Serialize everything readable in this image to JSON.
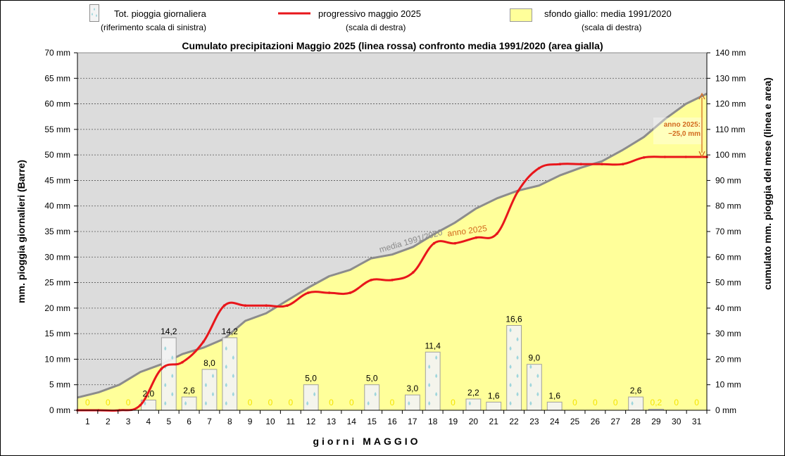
{
  "legend": {
    "bars_label": "Tot. pioggia giornaliera",
    "bars_sub": "(riferimento scala di sinistra)",
    "line_label": "progressivo maggio 2025",
    "line_sub": "(scala di destra)",
    "area_label": "sfondo giallo: media 1991/2020",
    "area_sub": "(scala di destra)"
  },
  "colors": {
    "line_2025": "#e8161b",
    "area_fill": "#ffff9a",
    "plot_bg": "#dcdcdc",
    "media_line": "#8c8c8c",
    "bar_fill": "#f4f4f4",
    "drop": "#9fd6dc",
    "zero_label": "#f4e400",
    "annotation": "#d2691e"
  },
  "chart_data": {
    "type": "bar",
    "title": "Cumulato precipitazioni  Maggio 2025 (linea rossa) confronto media 1991/2020 (area gialla)",
    "xlabel": "giorni  MAGGIO",
    "ylabel_left": "mm. pioggia giornalieri (Barre)",
    "ylabel_right": "cumulato mm. pioggia del mese (linea e area)",
    "ylim_left": [
      0,
      70
    ],
    "ylim_right": [
      0,
      140
    ],
    "left_ticks": [
      "0 mm",
      "5 mm",
      "10 mm",
      "15 mm",
      "20 mm",
      "25 mm",
      "30 mm",
      "35 mm",
      "40 mm",
      "45 mm",
      "50 mm",
      "55 mm",
      "60 mm",
      "65 mm",
      "70 mm"
    ],
    "right_ticks": [
      "0 mm",
      "10 mm",
      "20 mm",
      "30 mm",
      "40 mm",
      "50 mm",
      "60 mm",
      "70 mm",
      "80 mm",
      "90 mm",
      "100 mm",
      "110 mm",
      "120 mm",
      "130 mm",
      "140 mm"
    ],
    "categories": [
      "1",
      "2",
      "3",
      "4",
      "5",
      "6",
      "7",
      "8",
      "9",
      "10",
      "11",
      "12",
      "13",
      "14",
      "15",
      "16",
      "17",
      "18",
      "19",
      "20",
      "21",
      "22",
      "23",
      "24",
      "25",
      "26",
      "27",
      "28",
      "29",
      "30",
      "31"
    ],
    "daily_rain": [
      0,
      0,
      0,
      2.0,
      14.2,
      2.6,
      8.0,
      14.2,
      0,
      0,
      0,
      5.0,
      0,
      0,
      5.0,
      0,
      3.0,
      11.4,
      0,
      2.2,
      1.6,
      16.6,
      9.0,
      1.6,
      0,
      0,
      0,
      2.6,
      0.2,
      0,
      0
    ],
    "daily_labels": [
      "0",
      "0",
      "0",
      "2,0",
      "14,2",
      "2,6",
      "8,0",
      "14,2",
      "0",
      "0",
      "0",
      "5,0",
      "0",
      "0",
      "5,0",
      "0",
      "3,0",
      "11,4",
      "0",
      "2,2",
      "1,6",
      "16,6",
      "9,0",
      "1,6",
      "0",
      "0",
      "0",
      "2,6",
      "0,2",
      "0",
      "0"
    ],
    "series": [
      {
        "name": "progressivo maggio 2025",
        "axis": "right",
        "values": [
          0,
          0,
          0,
          2.0,
          16.2,
          18.8,
          26.8,
          41.0,
          41.0,
          41.0,
          41.0,
          46.0,
          46.0,
          46.0,
          51.0,
          51.0,
          54.0,
          65.4,
          65.4,
          67.6,
          69.2,
          85.8,
          94.8,
          96.4,
          96.4,
          96.4,
          96.4,
          99.0,
          99.2,
          99.2,
          99.2
        ]
      },
      {
        "name": "media 1991/2020",
        "axis": "right",
        "values": [
          5,
          7,
          10,
          15,
          18,
          22,
          24.5,
          28,
          35,
          38,
          43,
          48,
          52.5,
          55,
          59.5,
          61,
          64,
          69,
          73.5,
          79,
          83,
          86,
          88,
          92,
          95,
          97.5,
          102,
          107,
          114,
          120,
          124
        ]
      }
    ],
    "annotations": [
      "media 1991/2020",
      "anno 2025",
      "anno 2025:",
      "−25,0 mm"
    ]
  }
}
